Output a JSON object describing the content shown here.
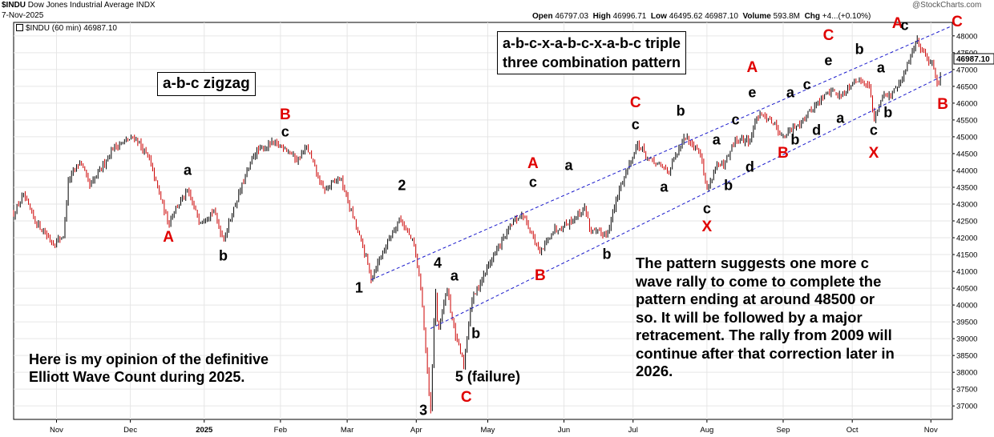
{
  "header": {
    "symbol": "$INDU",
    "name": "Dow Jones Industrial Average",
    "exchange": "INDX",
    "date": "7-Nov-2025",
    "watermark": "@StockCharts.com",
    "open_label": "Open",
    "open": "46797.03",
    "high_label": "High",
    "high": "46996.71",
    "low_label": "Low",
    "low": "46495.62",
    "close_label": "",
    "close": "46987.10",
    "volume_label": "Volume",
    "volume": "593.8M",
    "chg_label": "Chg",
    "chg": "+4...(+0.10%)",
    "legend": "$INDU (60 min) 46987.10",
    "last_price_tag": "46987.10"
  },
  "annotations": {
    "zigzag_box": "a-b-c zigzag",
    "triple_three_line1": "a-b-c-x-a-b-c-x-a-b-c triple",
    "triple_three_line2": "three combination pattern",
    "opinion_line1": "Here is my opinion of the definitive",
    "opinion_line2": "Elliott Wave Count during 2025.",
    "forecast_lines": [
      "The pattern suggests one more c",
      "wave rally to come to complete the",
      "pattern ending at around 48500 or",
      "so.  It will be followed by a major",
      "retracement. The rally from 2009 will",
      "continue after that correction later in",
      "2026."
    ]
  },
  "colors": {
    "wave_red": "#e00000",
    "wave_black": "#000000",
    "candle_up": "#000000",
    "candle_down": "#cc0000",
    "channel": "#1a1acc",
    "grid": "#e6e6e6"
  },
  "chart_data": {
    "type": "candlestick",
    "title": "",
    "xlabel": "",
    "ylabel": "",
    "x_range": [
      "2024-10-14",
      "2025-11-12"
    ],
    "ylim": [
      36600,
      48400
    ],
    "y_ticks": [
      37000,
      37500,
      38000,
      38500,
      39000,
      39500,
      40000,
      40500,
      41000,
      41500,
      42000,
      42500,
      43000,
      43500,
      44000,
      44500,
      45000,
      45500,
      46000,
      46500,
      47000,
      47500,
      48000
    ],
    "x_ticks": [
      {
        "label": "Nov",
        "date": "2024-11-01"
      },
      {
        "label": "Dec",
        "date": "2024-12-02"
      },
      {
        "label": "2025",
        "date": "2025-01-02"
      },
      {
        "label": "Feb",
        "date": "2025-02-03"
      },
      {
        "label": "Mar",
        "date": "2025-03-03"
      },
      {
        "label": "Apr",
        "date": "2025-04-01"
      },
      {
        "label": "May",
        "date": "2025-05-01"
      },
      {
        "label": "Jun",
        "date": "2025-06-02"
      },
      {
        "label": "Jul",
        "date": "2025-07-01"
      },
      {
        "label": "Aug",
        "date": "2025-08-01"
      },
      {
        "label": "Sep",
        "date": "2025-09-02"
      },
      {
        "label": "Oct",
        "date": "2025-10-01"
      },
      {
        "label": "Nov",
        "date": "2025-11-03"
      }
    ],
    "price_path": [
      [
        "2024-10-14",
        42700
      ],
      [
        "2024-10-18",
        43250
      ],
      [
        "2024-10-23",
        42500
      ],
      [
        "2024-10-31",
        41800
      ],
      [
        "2024-11-04",
        42100
      ],
      [
        "2024-11-06",
        43700
      ],
      [
        "2024-11-11",
        44300
      ],
      [
        "2024-11-15",
        43500
      ],
      [
        "2024-11-25",
        44700
      ],
      [
        "2024-12-04",
        45000
      ],
      [
        "2024-12-10",
        44300
      ],
      [
        "2024-12-18",
        42400
      ],
      [
        "2024-12-20",
        42800
      ],
      [
        "2024-12-26",
        43350
      ],
      [
        "2024-12-31",
        42500
      ],
      [
        "2025-01-06",
        42800
      ],
      [
        "2025-01-10",
        41950
      ],
      [
        "2025-01-16",
        43200
      ],
      [
        "2025-01-23",
        44500
      ],
      [
        "2025-01-30",
        44800
      ],
      [
        "2025-02-05",
        44700
      ],
      [
        "2025-02-10",
        44300
      ],
      [
        "2025-02-14",
        44700
      ],
      [
        "2025-02-21",
        43400
      ],
      [
        "2025-02-28",
        43800
      ],
      [
        "2025-03-06",
        42500
      ],
      [
        "2025-03-11",
        41400
      ],
      [
        "2025-03-13",
        40800
      ],
      [
        "2025-03-18",
        41600
      ],
      [
        "2025-03-25",
        42600
      ],
      [
        "2025-03-31",
        41800
      ],
      [
        "2025-04-03",
        40500
      ],
      [
        "2025-04-07",
        36700
      ],
      [
        "2025-04-09",
        40600
      ],
      [
        "2025-04-10",
        39200
      ],
      [
        "2025-04-14",
        40500
      ],
      [
        "2025-04-17",
        39200
      ],
      [
        "2025-04-21",
        38200
      ],
      [
        "2025-04-24",
        40100
      ],
      [
        "2025-05-02",
        41300
      ],
      [
        "2025-05-12",
        42500
      ],
      [
        "2025-05-16",
        42700
      ],
      [
        "2025-05-23",
        41500
      ],
      [
        "2025-05-28",
        42200
      ],
      [
        "2025-06-05",
        42500
      ],
      [
        "2025-06-11",
        42900
      ],
      [
        "2025-06-13",
        42200
      ],
      [
        "2025-06-20",
        42100
      ],
      [
        "2025-06-26",
        43600
      ],
      [
        "2025-07-03",
        44800
      ],
      [
        "2025-07-08",
        44300
      ],
      [
        "2025-07-16",
        44000
      ],
      [
        "2025-07-23",
        45000
      ],
      [
        "2025-07-29",
        44600
      ],
      [
        "2025-08-01",
        43400
      ],
      [
        "2025-08-05",
        44200
      ],
      [
        "2025-08-08",
        44100
      ],
      [
        "2025-08-13",
        44900
      ],
      [
        "2025-08-19",
        44900
      ],
      [
        "2025-08-22",
        45600
      ],
      [
        "2025-08-27",
        45600
      ],
      [
        "2025-09-02",
        45000
      ],
      [
        "2025-09-10",
        45500
      ],
      [
        "2025-09-15",
        45900
      ],
      [
        "2025-09-22",
        46400
      ],
      [
        "2025-09-26",
        46200
      ],
      [
        "2025-10-02",
        46700
      ],
      [
        "2025-10-08",
        46600
      ],
      [
        "2025-10-10",
        45500
      ],
      [
        "2025-10-14",
        46300
      ],
      [
        "2025-10-17",
        46200
      ],
      [
        "2025-10-22",
        46700
      ],
      [
        "2025-10-28",
        47900
      ],
      [
        "2025-10-31",
        47500
      ],
      [
        "2025-11-04",
        47100
      ],
      [
        "2025-11-06",
        46500
      ],
      [
        "2025-11-07",
        46987
      ]
    ],
    "channels": [
      {
        "from": [
          "2025-03-13",
          40750
        ],
        "to": [
          "2025-11-12",
          48300
        ]
      },
      {
        "from": [
          "2025-04-07",
          39300
        ],
        "to": [
          "2025-11-12",
          46950
        ]
      }
    ],
    "wave_labels": [
      {
        "text": "A",
        "date": "2024-12-18",
        "price": 42000,
        "color": "red"
      },
      {
        "text": "a",
        "date": "2024-12-26",
        "price": 44000,
        "color": "black"
      },
      {
        "text": "b",
        "date": "2025-01-10",
        "price": 41450,
        "color": "black"
      },
      {
        "text": "B",
        "date": "2025-02-05",
        "price": 45650,
        "color": "red"
      },
      {
        "text": "c",
        "date": "2025-02-05",
        "price": 45150,
        "color": "black"
      },
      {
        "text": "1",
        "date": "2025-03-08",
        "price": 40500,
        "color": "black"
      },
      {
        "text": "2",
        "date": "2025-03-26",
        "price": 43550,
        "color": "black"
      },
      {
        "text": "3",
        "date": "2025-04-04",
        "price": 36850,
        "color": "black"
      },
      {
        "text": "4",
        "date": "2025-04-10",
        "price": 41250,
        "color": "black"
      },
      {
        "text": "a",
        "date": "2025-04-17",
        "price": 40850,
        "color": "black"
      },
      {
        "text": "b",
        "date": "2025-04-26",
        "price": 39150,
        "color": "black"
      },
      {
        "text": "5 (failure)",
        "date": "2025-05-01",
        "price": 37850,
        "color": "black"
      },
      {
        "text": "C",
        "date": "2025-04-22",
        "price": 37250,
        "color": "red"
      },
      {
        "text": "A",
        "date": "2025-05-20",
        "price": 44200,
        "color": "red"
      },
      {
        "text": "c",
        "date": "2025-05-20",
        "price": 43650,
        "color": "black"
      },
      {
        "text": "a",
        "date": "2025-06-04",
        "price": 44150,
        "color": "black"
      },
      {
        "text": "B",
        "date": "2025-05-23",
        "price": 40850,
        "color": "red"
      },
      {
        "text": "b",
        "date": "2025-06-20",
        "price": 41500,
        "color": "black"
      },
      {
        "text": "C",
        "date": "2025-07-02",
        "price": 46000,
        "color": "red"
      },
      {
        "text": "c",
        "date": "2025-07-02",
        "price": 45350,
        "color": "black"
      },
      {
        "text": "a",
        "date": "2025-07-14",
        "price": 43500,
        "color": "black"
      },
      {
        "text": "b",
        "date": "2025-07-21",
        "price": 45750,
        "color": "black"
      },
      {
        "text": "c",
        "date": "2025-08-01",
        "price": 42850,
        "color": "black"
      },
      {
        "text": "X",
        "date": "2025-08-01",
        "price": 42300,
        "color": "red"
      },
      {
        "text": "a",
        "date": "2025-08-05",
        "price": 44900,
        "color": "black"
      },
      {
        "text": "b",
        "date": "2025-08-10",
        "price": 43550,
        "color": "black"
      },
      {
        "text": "c",
        "date": "2025-08-13",
        "price": 45500,
        "color": "black"
      },
      {
        "text": "d",
        "date": "2025-08-19",
        "price": 44100,
        "color": "black"
      },
      {
        "text": "A",
        "date": "2025-08-20",
        "price": 47050,
        "color": "red"
      },
      {
        "text": "e",
        "date": "2025-08-20",
        "price": 46300,
        "color": "black"
      },
      {
        "text": "B",
        "date": "2025-09-02",
        "price": 44500,
        "color": "red"
      },
      {
        "text": "a",
        "date": "2025-09-05",
        "price": 46300,
        "color": "black"
      },
      {
        "text": "b",
        "date": "2025-09-07",
        "price": 44900,
        "color": "black"
      },
      {
        "text": "c",
        "date": "2025-09-12",
        "price": 46550,
        "color": "black"
      },
      {
        "text": "d",
        "date": "2025-09-16",
        "price": 45200,
        "color": "black"
      },
      {
        "text": "C",
        "date": "2025-09-21",
        "price": 48000,
        "color": "red"
      },
      {
        "text": "e",
        "date": "2025-09-21",
        "price": 47250,
        "color": "black"
      },
      {
        "text": "a",
        "date": "2025-09-26",
        "price": 45550,
        "color": "black"
      },
      {
        "text": "b",
        "date": "2025-10-04",
        "price": 47600,
        "color": "black"
      },
      {
        "text": "a",
        "date": "2025-10-13",
        "price": 47050,
        "color": "black"
      },
      {
        "text": "c",
        "date": "2025-10-10",
        "price": 45200,
        "color": "black"
      },
      {
        "text": "b",
        "date": "2025-10-16",
        "price": 45700,
        "color": "black"
      },
      {
        "text": "X",
        "date": "2025-10-10",
        "price": 44500,
        "color": "red"
      },
      {
        "text": "A",
        "date": "2025-10-20",
        "price": 48350,
        "color": "red"
      },
      {
        "text": "c",
        "date": "2025-10-23",
        "price": 48300,
        "color": "black"
      },
      {
        "text": "C",
        "date": "2025-11-14",
        "price": 48400,
        "color": "red"
      },
      {
        "text": "B",
        "date": "2025-11-08",
        "price": 45950,
        "color": "red"
      }
    ]
  }
}
